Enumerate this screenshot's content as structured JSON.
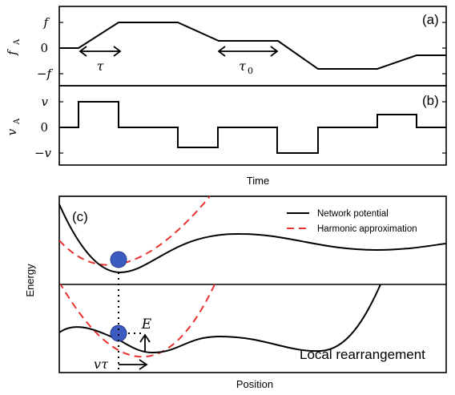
{
  "panel_a": {
    "label": "(a)",
    "y_axis_label": "f",
    "y_axis_subscript": "A",
    "y_ticks": [
      "f",
      "0",
      "−f"
    ],
    "tau_label": "τ",
    "tau0_label": "τ",
    "tau0_subscript": "0"
  },
  "panel_b": {
    "label": "(b)",
    "y_axis_label": "v",
    "y_axis_subscript": "A",
    "y_ticks": [
      "v",
      "0",
      "−v"
    ]
  },
  "time_label": "Time",
  "panel_c": {
    "label": "(c)",
    "legend": {
      "network": "Network potential",
      "harmonic": "Harmonic approximation"
    },
    "E_label": "E",
    "vtau_label": "vτ",
    "local_label": "Local rearrangement",
    "y_axis_label": "Energy",
    "x_axis_label": "Position"
  },
  "colors": {
    "harmonic": "#e8312f",
    "particle": "#3a5bbf",
    "particle_edge": "#1f3a8a"
  }
}
